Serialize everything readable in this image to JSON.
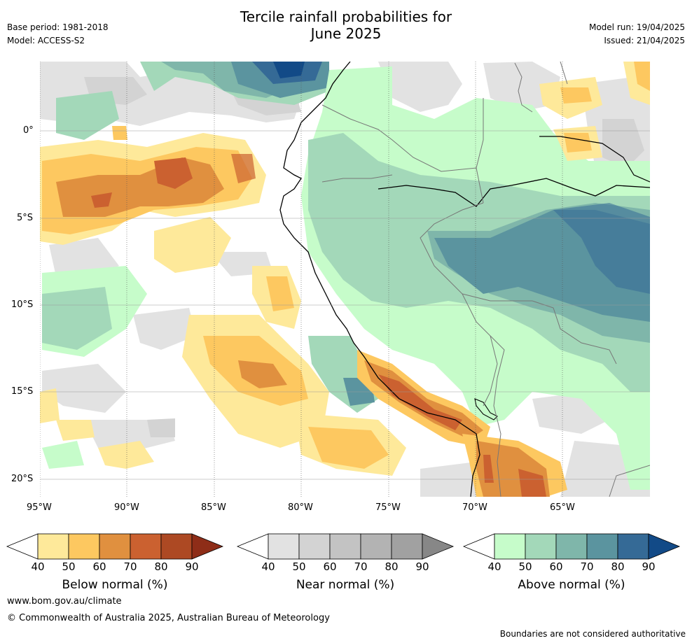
{
  "title_line1": "Tercile rainfall probabilities for",
  "title_line2": "June 2025",
  "base_period": "Base period: 1981-2018",
  "model": "Model: ACCESS-S2",
  "model_run": "Model run: 19/04/2025",
  "issued": "Issued: 21/04/2025",
  "axes": {
    "lon_labels": [
      "95°W",
      "90°W",
      "85°W",
      "80°W",
      "75°W",
      "70°W",
      "65°W"
    ],
    "lat_labels": [
      "0°",
      "5°S",
      "10°S",
      "15°S",
      "20°S"
    ]
  },
  "colorbars": [
    {
      "label": "Below normal (%)",
      "ticks": [
        "40",
        "50",
        "60",
        "70",
        "80",
        "90"
      ],
      "colors": [
        "#fee99a",
        "#fdc860",
        "#e0903f",
        "#cb6130",
        "#ad4923",
        "#8e2d18"
      ]
    },
    {
      "label": "Near normal (%)",
      "ticks": [
        "40",
        "50",
        "60",
        "70",
        "80",
        "90"
      ],
      "colors": [
        "#e2e2e2",
        "#d3d3d3",
        "#c3c3c3",
        "#b3b3b3",
        "#a1a1a1",
        "#878787"
      ]
    },
    {
      "label": "Above normal (%)",
      "ticks": [
        "40",
        "50",
        "60",
        "70",
        "80",
        "90"
      ],
      "colors": [
        "#c6fcca",
        "#a3d8b9",
        "#7fb6aa",
        "#5b949f",
        "#356a96",
        "#124a87"
      ]
    }
  ],
  "footer_url": "www.bom.gov.au/climate",
  "footer_copyright": "© Commonwealth of Australia 2025, Australian Bureau of Meteorology",
  "disclaimer": "Boundaries are not considered authoritative"
}
